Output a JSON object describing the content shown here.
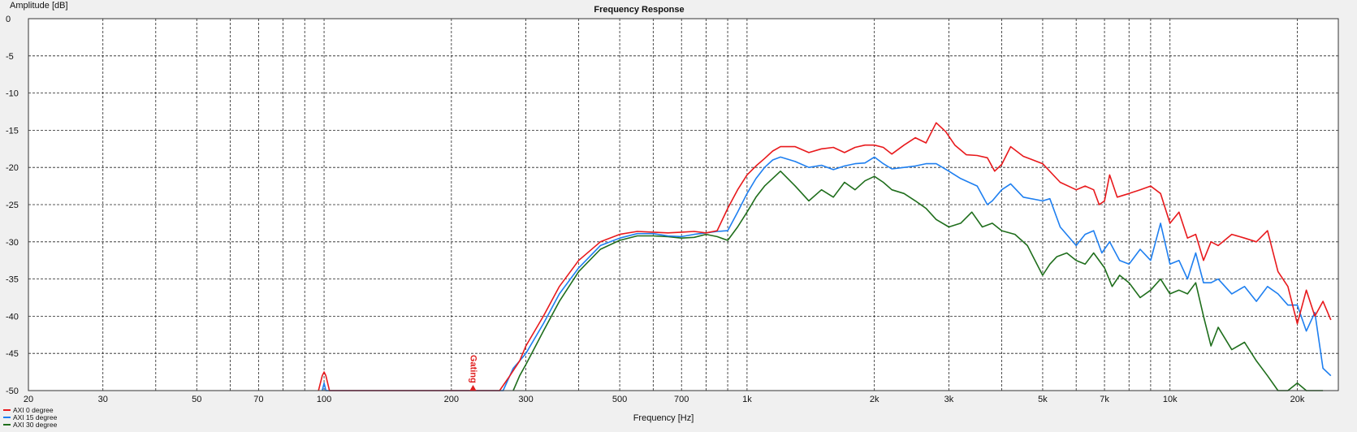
{
  "chart_data": {
    "type": "line",
    "title": "Frequency Response",
    "xlabel": "Frequency [Hz]",
    "ylabel": "Amplitude [dB]",
    "x_scale": "log",
    "xlim": [
      20,
      25000
    ],
    "ylim": [
      -50,
      0
    ],
    "grid": true,
    "legend_position": "bottom-left",
    "x_ticks": [
      {
        "v": 20,
        "label": "20"
      },
      {
        "v": 30,
        "label": "30"
      },
      {
        "v": 50,
        "label": "50"
      },
      {
        "v": 70,
        "label": "70"
      },
      {
        "v": 100,
        "label": "100"
      },
      {
        "v": 200,
        "label": "200"
      },
      {
        "v": 300,
        "label": "300"
      },
      {
        "v": 500,
        "label": "500"
      },
      {
        "v": 700,
        "label": "700"
      },
      {
        "v": 1000,
        "label": "1k"
      },
      {
        "v": 2000,
        "label": "2k"
      },
      {
        "v": 3000,
        "label": "3k"
      },
      {
        "v": 5000,
        "label": "5k"
      },
      {
        "v": 7000,
        "label": "7k"
      },
      {
        "v": 10000,
        "label": "10k"
      },
      {
        "v": 20000,
        "label": "20k"
      }
    ],
    "x_gridlines": [
      20,
      30,
      40,
      50,
      60,
      70,
      80,
      90,
      100,
      200,
      300,
      400,
      500,
      600,
      700,
      800,
      900,
      1000,
      2000,
      3000,
      4000,
      5000,
      6000,
      7000,
      8000,
      9000,
      10000,
      20000
    ],
    "y_ticks": [
      0,
      -5,
      -10,
      -15,
      -20,
      -25,
      -30,
      -35,
      -40,
      -45,
      -50
    ],
    "annotations": [
      {
        "text": "Gating",
        "x": 225,
        "color": "#e02020"
      }
    ],
    "series": [
      {
        "name": "AXI 0 degree",
        "color": "#e8191c",
        "x": [
          97,
          99,
          100,
          101,
          103,
          260,
          275,
          290,
          300,
          330,
          360,
          400,
          450,
          500,
          550,
          600,
          650,
          700,
          750,
          800,
          850,
          900,
          950,
          1000,
          1050,
          1100,
          1150,
          1200,
          1300,
          1400,
          1500,
          1600,
          1700,
          1800,
          1900,
          2000,
          2100,
          2200,
          2350,
          2500,
          2650,
          2800,
          2950,
          3100,
          3300,
          3500,
          3700,
          3850,
          4000,
          4200,
          4500,
          5000,
          5500,
          6000,
          6300,
          6600,
          6800,
          7000,
          7200,
          7500,
          8000,
          8500,
          9000,
          9500,
          10000,
          10500,
          11000,
          11500,
          12000,
          12500,
          13000,
          14000,
          15000,
          16000,
          17000,
          18000,
          19000,
          20000,
          21000,
          22000,
          23000,
          24000
        ],
        "y": [
          -50,
          -48,
          -47.5,
          -48,
          -50,
          -50,
          -48,
          -46,
          -44,
          -40,
          -36,
          -32.5,
          -30,
          -29,
          -28.6,
          -28.7,
          -28.8,
          -28.7,
          -28.6,
          -28.8,
          -28.5,
          -25.5,
          -23,
          -21,
          -19.8,
          -18.8,
          -17.8,
          -17.2,
          -17.2,
          -18,
          -17.5,
          -17.3,
          -18,
          -17.3,
          -17,
          -17,
          -17.3,
          -18.2,
          -17,
          -16,
          -16.7,
          -14,
          -15.2,
          -17,
          -18.3,
          -18.4,
          -18.7,
          -20.5,
          -19.6,
          -17.2,
          -18.5,
          -19.5,
          -22,
          -23,
          -22.5,
          -23,
          -25,
          -24.5,
          -21,
          -24,
          -23.5,
          -23,
          -22.5,
          -23.5,
          -27.5,
          -26,
          -29.5,
          -29,
          -32.5,
          -30,
          -30.5,
          -29,
          -29.5,
          -30,
          -28.5,
          -34,
          -36,
          -41,
          -36.5,
          -40,
          -38,
          -40.5
        ]
      },
      {
        "name": "AXI 15 degree",
        "color": "#1e7ff0",
        "x": [
          99,
          100,
          101,
          265,
          280,
          290,
          300,
          330,
          360,
          400,
          450,
          500,
          550,
          600,
          650,
          700,
          750,
          800,
          850,
          900,
          950,
          1000,
          1050,
          1100,
          1150,
          1200,
          1300,
          1400,
          1500,
          1600,
          1700,
          1800,
          1900,
          2000,
          2100,
          2200,
          2350,
          2500,
          2650,
          2800,
          3000,
          3200,
          3500,
          3700,
          3800,
          4000,
          4200,
          4500,
          5000,
          5200,
          5500,
          6000,
          6300,
          6600,
          6900,
          7200,
          7600,
          8000,
          8500,
          9000,
          9500,
          10000,
          10500,
          11000,
          11500,
          12000,
          12500,
          13000,
          14000,
          15000,
          16000,
          17000,
          18000,
          19000,
          20000,
          21000,
          22000,
          23000,
          24000
        ],
        "y": [
          -50,
          -49,
          -50,
          -50,
          -47,
          -46,
          -45,
          -41,
          -37,
          -33.5,
          -30.5,
          -29.5,
          -28.9,
          -28.9,
          -29.2,
          -29.3,
          -29,
          -28.8,
          -28.6,
          -28.5,
          -26,
          -23.5,
          -21.5,
          -20,
          -19,
          -18.6,
          -19.2,
          -20,
          -19.7,
          -20.3,
          -19.8,
          -19.5,
          -19.4,
          -18.6,
          -19.5,
          -20.2,
          -20,
          -19.8,
          -19.5,
          -19.5,
          -20.5,
          -21.5,
          -22.5,
          -25,
          -24.5,
          -23,
          -22.2,
          -24,
          -24.5,
          -24.2,
          -28,
          -30.5,
          -29,
          -28.5,
          -31.5,
          -30,
          -32.5,
          -33,
          -31,
          -32.5,
          -27.5,
          -33,
          -32.5,
          -35,
          -31.5,
          -35.5,
          -35.5,
          -35,
          -37,
          -36,
          -38,
          -36,
          -37,
          -38.5,
          -38.5,
          -42,
          -39.5,
          -47,
          -48
        ]
      },
      {
        "name": "AXI 30 degree",
        "color": "#1f6e1c",
        "x": [
          280,
          290,
          300,
          330,
          360,
          400,
          450,
          500,
          550,
          600,
          650,
          700,
          750,
          800,
          850,
          900,
          950,
          1000,
          1050,
          1100,
          1200,
          1300,
          1400,
          1500,
          1600,
          1700,
          1800,
          1900,
          2000,
          2100,
          2200,
          2350,
          2500,
          2650,
          2800,
          3000,
          3200,
          3400,
          3600,
          3800,
          4000,
          4300,
          4600,
          5000,
          5200,
          5400,
          5700,
          6000,
          6300,
          6600,
          7000,
          7300,
          7600,
          8000,
          8500,
          9000,
          9500,
          10000,
          10500,
          11000,
          11500,
          12000,
          12500,
          13000,
          14000,
          15000,
          16000,
          17000,
          18000,
          19000,
          20000,
          21000,
          22000,
          23000
        ],
        "y": [
          -50,
          -48,
          -46.5,
          -42,
          -38,
          -34,
          -31,
          -29.8,
          -29.2,
          -29.2,
          -29.3,
          -29.5,
          -29.4,
          -29,
          -29.3,
          -29.8,
          -28,
          -26,
          -24,
          -22.5,
          -20.5,
          -22.5,
          -24.5,
          -23,
          -24,
          -22,
          -23,
          -21.8,
          -21.2,
          -22,
          -23,
          -23.5,
          -24.5,
          -25.5,
          -27,
          -28,
          -27.5,
          -26,
          -28,
          -27.5,
          -28.5,
          -29,
          -30.5,
          -34.5,
          -33,
          -32,
          -31.5,
          -32.5,
          -33,
          -31.5,
          -33.5,
          -36,
          -34.5,
          -35.5,
          -37.5,
          -36.5,
          -35,
          -37,
          -36.5,
          -37,
          -35.5,
          -40,
          -44,
          -41.5,
          -44.5,
          -43.5,
          -46,
          -48,
          -50,
          -50,
          -49,
          -50,
          -50,
          -50
        ]
      }
    ]
  }
}
